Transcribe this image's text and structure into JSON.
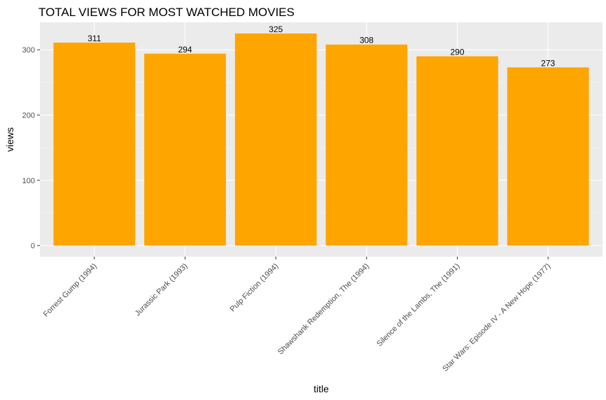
{
  "chart_data": {
    "type": "bar",
    "title": "TOTAL VIEWS FOR MOST WATCHED MOVIES",
    "xlabel": "title",
    "ylabel": "views",
    "categories": [
      "Forrest Gump (1994)",
      "Jurassic Park (1993)",
      "Pulp Fiction (1994)",
      "Shawshank Redemption, The (1994)",
      "Silence of the Lambs, The (1991)",
      "Star Wars: Episode IV - A New Hope (1977)"
    ],
    "values": [
      311,
      294,
      325,
      308,
      290,
      273
    ],
    "data_labels": [
      "311",
      "294",
      "325",
      "308",
      "290",
      "273"
    ],
    "yticks": [
      0,
      100,
      200,
      300
    ],
    "ytick_labels": [
      "0",
      "100",
      "200",
      "300"
    ],
    "ylim": [
      -17,
      342
    ],
    "grid": true,
    "colors": {
      "bar": "#FFA500",
      "panel": "#EBEBEB",
      "grid_major": "#FFFFFF",
      "grid_minor": "#F5F5F5"
    }
  }
}
